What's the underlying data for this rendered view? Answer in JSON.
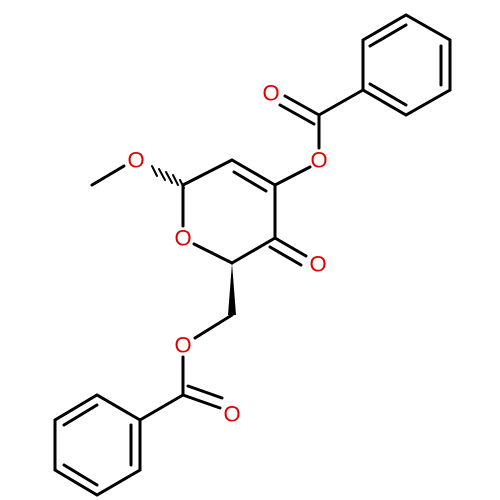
{
  "atoms": [
    {
      "label": "O"
    },
    {
      "label": "O"
    },
    {
      "label": "O"
    },
    {
      "label": "O"
    },
    {
      "label": "O"
    },
    {
      "label": "O"
    },
    {
      "label": "O"
    }
  ]
}
